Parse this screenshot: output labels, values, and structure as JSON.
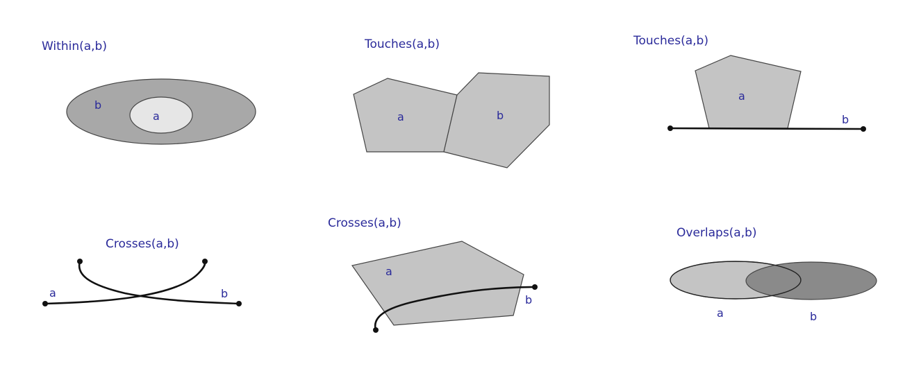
{
  "panels": {
    "within": {
      "title": "Within(a,b)",
      "a": "a",
      "b": "b"
    },
    "touches_poly": {
      "title": "Touches(a,b)",
      "a": "a",
      "b": "b"
    },
    "touches_line": {
      "title": "Touches(a,b)",
      "a": "a",
      "b": "b"
    },
    "crosses_lines": {
      "title": "Crosses(a,b)",
      "a": "a",
      "b": "b"
    },
    "crosses_poly": {
      "title": "Crosses(a,b)",
      "a": "a",
      "b": "b"
    },
    "overlaps": {
      "title": "Overlaps(a,b)",
      "a": "a",
      "b": "b"
    }
  },
  "colors": {
    "title_text": "#2a2a9a",
    "light_fill": "#e6e6e6",
    "medium_fill": "#c4c4c4",
    "dark_fill": "#a8a8a8",
    "darkest_fill": "#8a8a8a",
    "line": "#111111"
  }
}
